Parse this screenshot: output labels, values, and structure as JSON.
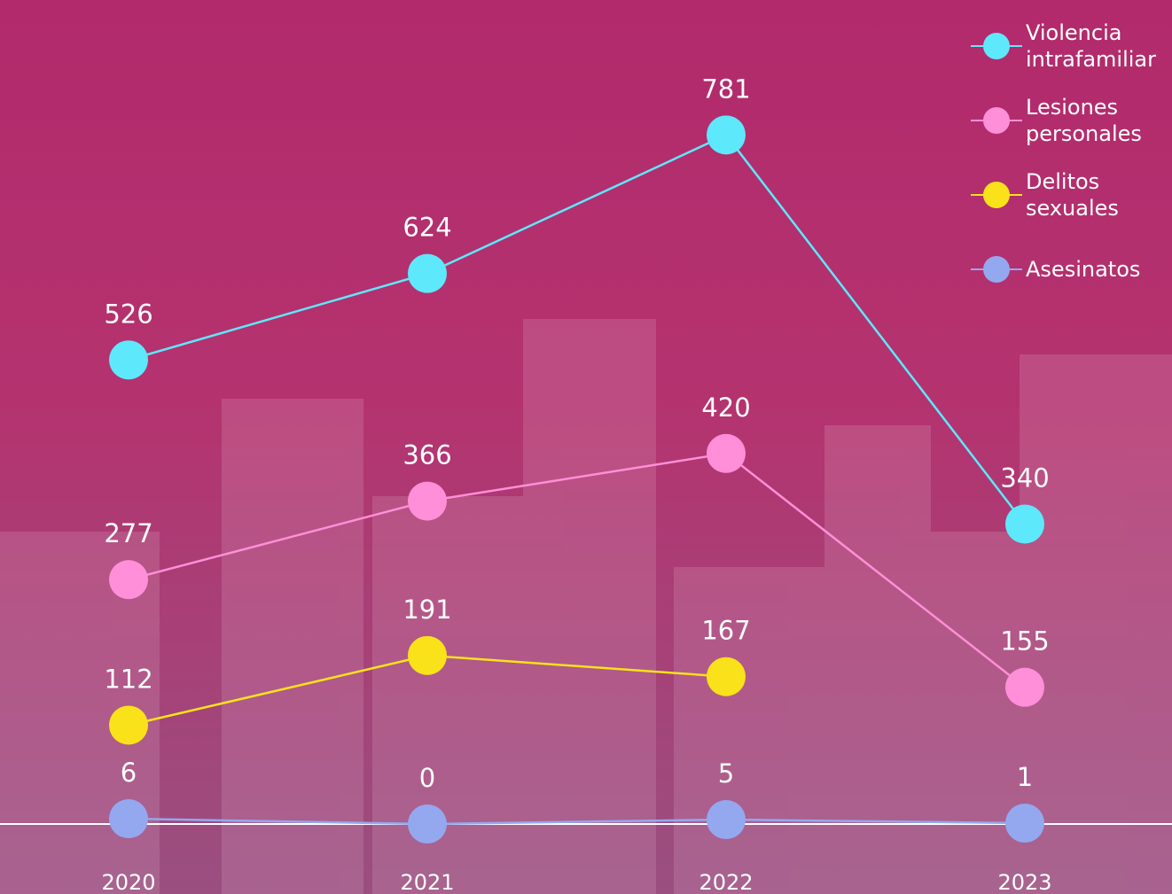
{
  "chart_data": {
    "type": "line",
    "categories": [
      "2020",
      "2021",
      "2022",
      "2023"
    ],
    "series": [
      {
        "name": "Violencia intrafamiliar",
        "color": "#5ee8fb",
        "values": [
          526,
          624,
          781,
          340
        ]
      },
      {
        "name": "Lesiones personales",
        "color": "#ff8fd8",
        "values": [
          277,
          366,
          420,
          155
        ]
      },
      {
        "name": "Delitos sexuales",
        "color": "#f9e21a",
        "values": [
          112,
          191,
          167,
          null
        ]
      },
      {
        "name": "Asesinatos",
        "color": "#94a8f0",
        "values": [
          6,
          0,
          5,
          1
        ]
      }
    ],
    "ylim": [
      0,
      934
    ]
  }
}
